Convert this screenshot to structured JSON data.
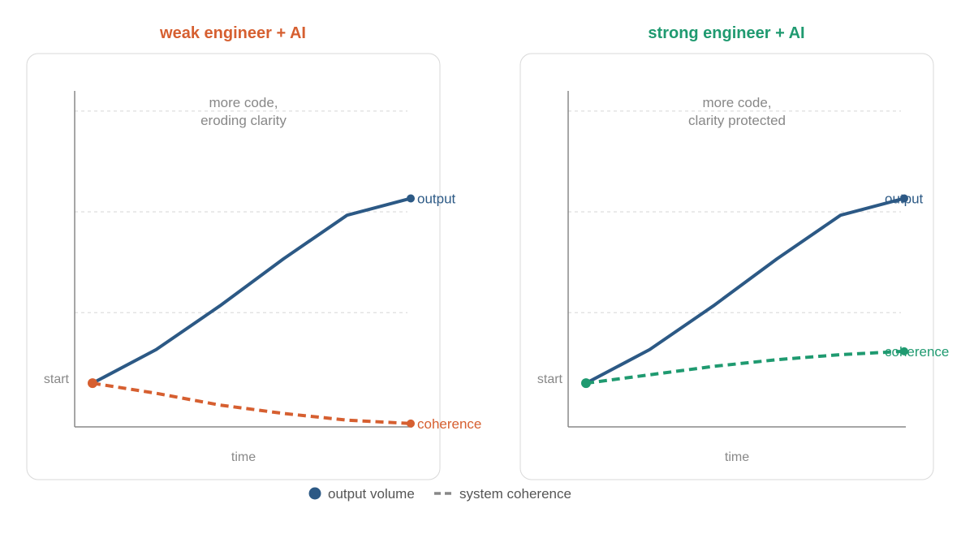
{
  "colors": {
    "output": "#2c5985",
    "weak": "#d65f30",
    "strong": "#1f9a70",
    "frame": "#d9d9d9",
    "axis": "#888888",
    "grid": "#d5d5d5",
    "muted": "#888888"
  },
  "legend": {
    "output_label": "output volume",
    "coherence_label": "system coherence"
  },
  "chart_data": [
    {
      "type": "line",
      "title": "weak engineer + AI",
      "accent": "weak",
      "xlabel": "time",
      "start_label": "start",
      "note": [
        "more code,",
        "eroding clarity"
      ],
      "grid": true,
      "xlim": [
        0,
        1
      ],
      "ylim": [
        0,
        1
      ],
      "y_grid": [
        0.34,
        0.64,
        0.94
      ],
      "series": [
        {
          "name": "output",
          "style": "solid",
          "color": "output",
          "x": [
            0,
            0.2,
            0.4,
            0.6,
            0.8,
            1.0
          ],
          "y": [
            0.13,
            0.23,
            0.36,
            0.5,
            0.63,
            0.68
          ]
        },
        {
          "name": "coherence",
          "style": "dashed",
          "color": "weak",
          "x": [
            0,
            0.2,
            0.4,
            0.6,
            0.8,
            1.0
          ],
          "y": [
            0.13,
            0.1,
            0.065,
            0.04,
            0.02,
            0.01
          ]
        }
      ]
    },
    {
      "type": "line",
      "title": "strong engineer + AI",
      "accent": "strong",
      "xlabel": "time",
      "start_label": "start",
      "note": [
        "more code,",
        "clarity protected"
      ],
      "grid": true,
      "xlim": [
        0,
        1
      ],
      "ylim": [
        0,
        1
      ],
      "y_grid": [
        0.34,
        0.64,
        0.94
      ],
      "series": [
        {
          "name": "output",
          "style": "solid",
          "color": "output",
          "x": [
            0,
            0.2,
            0.4,
            0.6,
            0.8,
            1.0
          ],
          "y": [
            0.13,
            0.23,
            0.36,
            0.5,
            0.63,
            0.68
          ]
        },
        {
          "name": "coherence",
          "style": "dashed",
          "color": "strong",
          "x": [
            0,
            0.2,
            0.4,
            0.6,
            0.8,
            1.0
          ],
          "y": [
            0.13,
            0.155,
            0.18,
            0.2,
            0.215,
            0.225
          ]
        }
      ]
    }
  ]
}
